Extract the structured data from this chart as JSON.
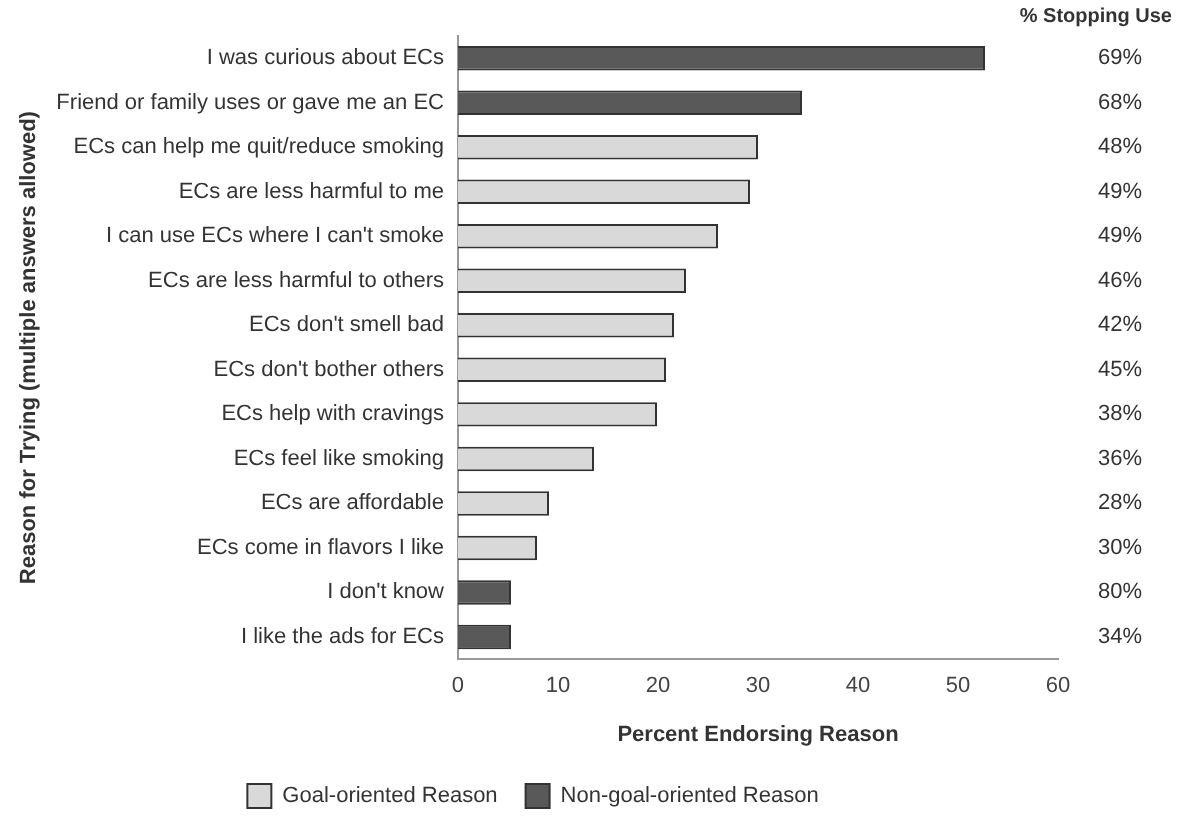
{
  "chart_data": {
    "type": "bar",
    "orientation": "horizontal",
    "stacked": true,
    "categories": [
      "I was curious about ECs",
      "Friend or family uses or gave me an EC",
      "ECs can help me quit/reduce smoking",
      "ECs are less harmful to me",
      "I can use ECs where I can't smoke",
      "ECs are less harmful to others",
      "ECs don't smell bad",
      "ECs don't bother others",
      "ECs help with cravings",
      "ECs feel like smoking",
      "ECs are affordable",
      "ECs come in flavors I like",
      "I don't know",
      "I like the ads for ECs"
    ],
    "series": [
      {
        "name": "Goal-oriented Reason",
        "color": "#d9d9d9",
        "values": [
          null,
          null,
          30.0,
          29.2,
          26.0,
          22.8,
          21.6,
          20.8,
          19.9,
          13.6,
          9.1,
          7.9,
          null,
          null
        ]
      },
      {
        "name": "Non-goal-oriented Reason",
        "color": "#595959",
        "values": [
          52.7,
          34.4,
          null,
          null,
          null,
          null,
          null,
          null,
          null,
          null,
          null,
          null,
          5.3,
          5.3
        ]
      }
    ],
    "xlabel": "Percent Endorsing Reason",
    "ylabel": "Reason for Trying (multiple answers allowed)",
    "xlim": [
      0,
      60
    ],
    "xticks": [
      0,
      10,
      20,
      30,
      40,
      50,
      60
    ],
    "grid": false,
    "legend": "bottom",
    "annotations": [
      "% Stopping Use",
      "69%",
      "68%",
      "48%",
      "49%",
      "49%",
      "46%",
      "42%",
      "45%",
      "38%",
      "36%",
      "28%",
      "30%",
      "80%",
      "34%"
    ]
  }
}
